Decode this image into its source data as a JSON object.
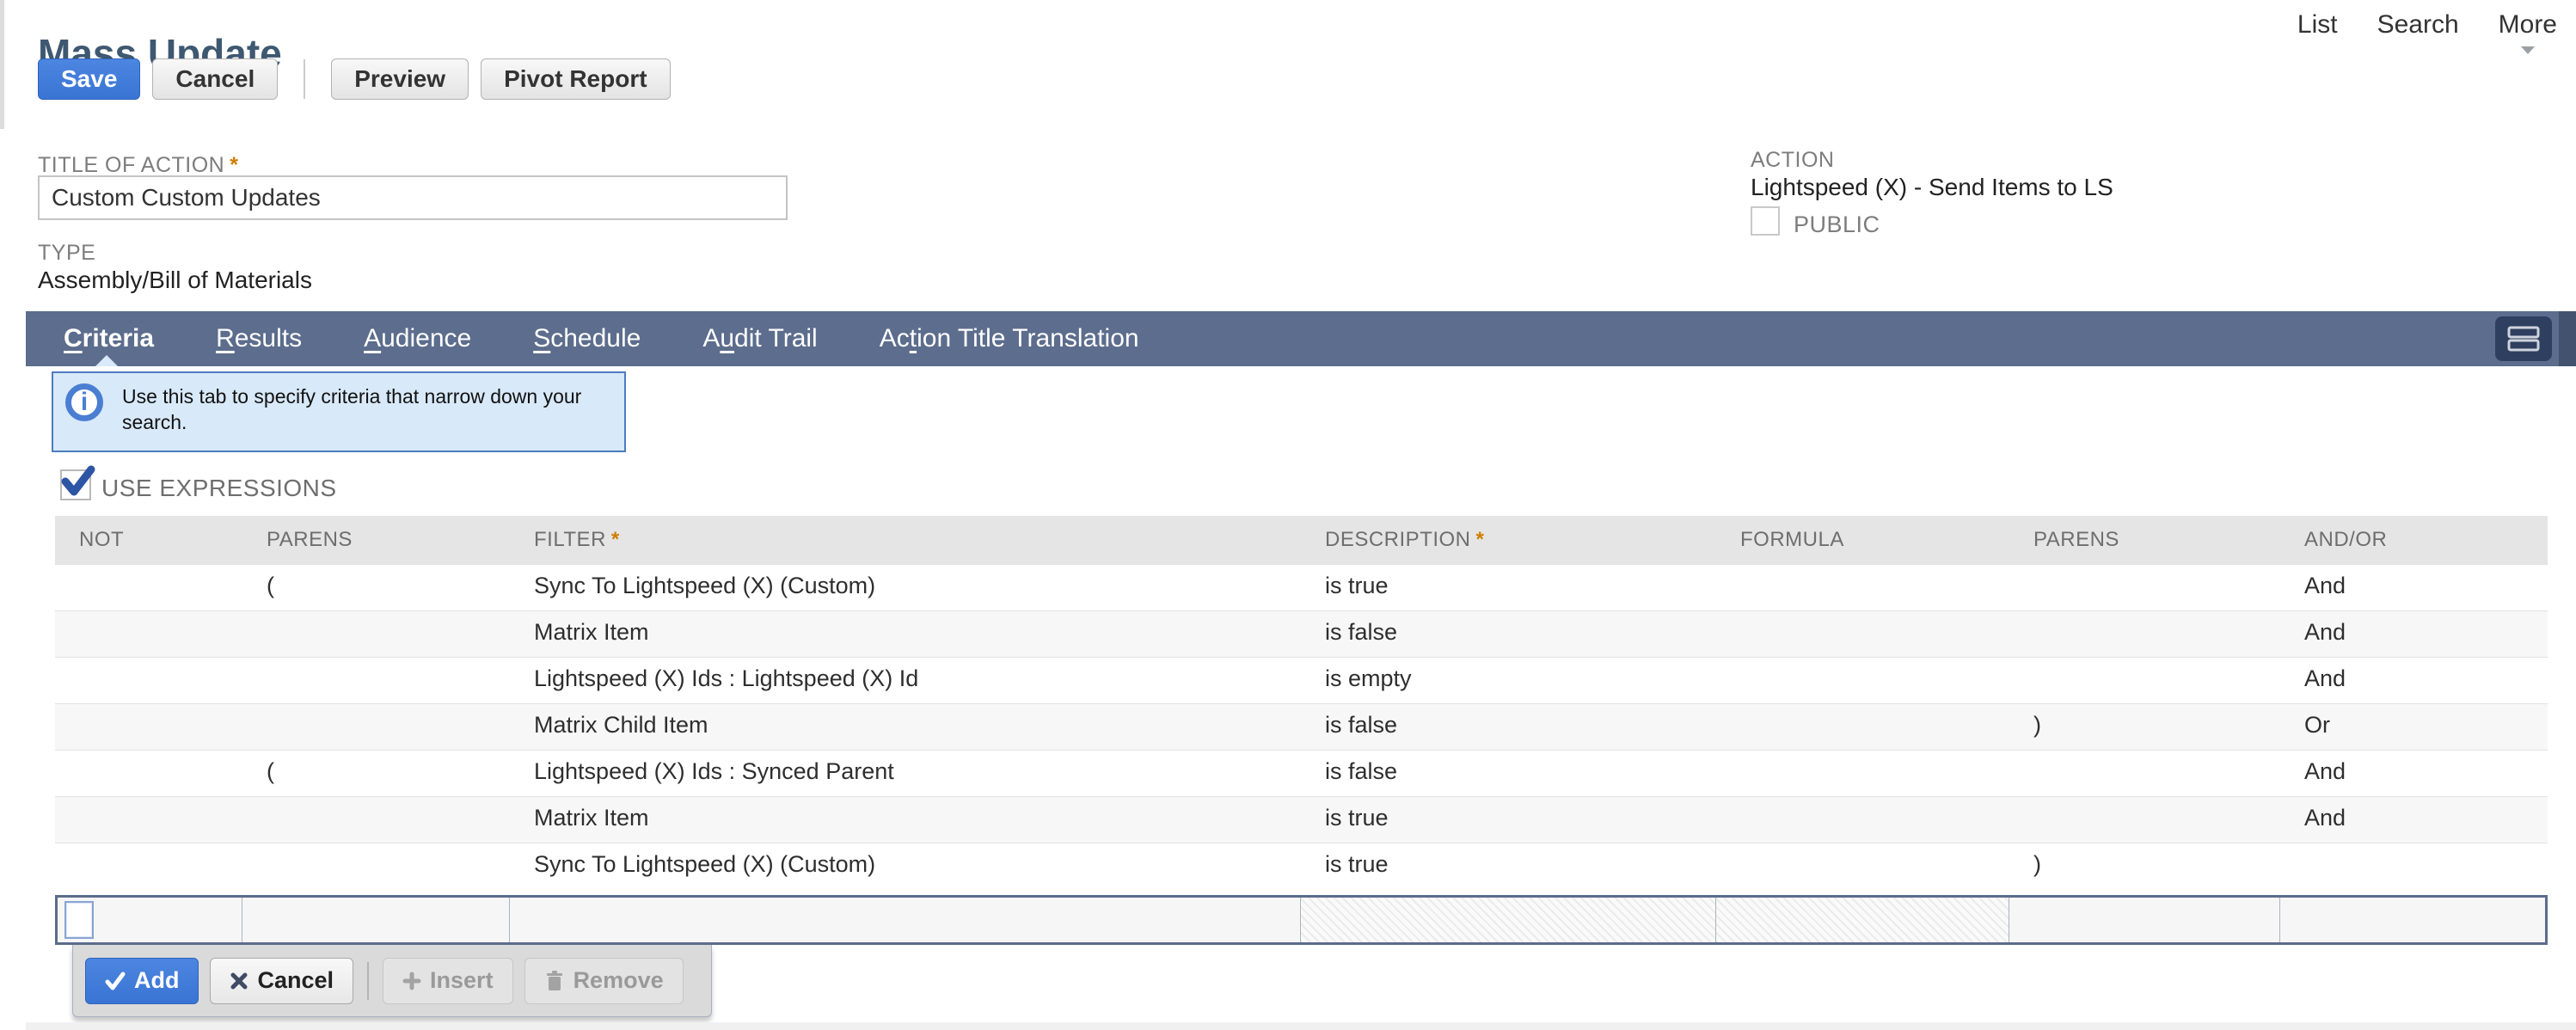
{
  "page": {
    "title": "Mass Update"
  },
  "required_marker": "*",
  "top_nav": {
    "links": [
      "List",
      "Search",
      "More"
    ]
  },
  "toolbar": {
    "save": "Save",
    "cancel": "Cancel",
    "preview": "Preview",
    "pivot_report": "Pivot Report"
  },
  "fields": {
    "title_of_action": {
      "label": "TITLE OF ACTION",
      "value": "Custom Custom Updates",
      "required": true
    },
    "type": {
      "label": "TYPE",
      "value": "Assembly/Bill of Materials"
    },
    "action": {
      "label": "ACTION",
      "value": "Lightspeed (X) - Send Items to LS"
    },
    "public": {
      "label": "PUBLIC",
      "checked": false
    }
  },
  "tabs": [
    {
      "label": "Criteria",
      "accesskey_index": 0,
      "active": true
    },
    {
      "label": "Results",
      "accesskey_index": 0,
      "active": false
    },
    {
      "label": "Audience",
      "accesskey_index": 0,
      "active": false
    },
    {
      "label": "Schedule",
      "accesskey_index": 0,
      "active": false
    },
    {
      "label": "Audit Trail",
      "accesskey_index": 1,
      "active": false
    },
    {
      "label": "Action Title Translation",
      "accesskey_index": 2,
      "active": false
    }
  ],
  "info_banner": {
    "text": "Use this tab to specify criteria that narrow down your search."
  },
  "use_expressions": {
    "label": "USE EXPRESSIONS",
    "checked": true
  },
  "criteria_table": {
    "columns": [
      {
        "label": "NOT",
        "required": false
      },
      {
        "label": "PARENS",
        "required": false
      },
      {
        "label": "FILTER",
        "required": true
      },
      {
        "label": "DESCRIPTION",
        "required": true
      },
      {
        "label": "FORMULA",
        "required": false
      },
      {
        "label": "PARENS",
        "required": false
      },
      {
        "label": "AND/OR",
        "required": false
      }
    ],
    "rows": [
      {
        "not": "",
        "parens": "(",
        "filter": "Sync To Lightspeed (X) (Custom)",
        "description": "is true",
        "formula": "",
        "parens2": "",
        "andor": "And"
      },
      {
        "not": "",
        "parens": "",
        "filter": "Matrix Item",
        "description": "is false",
        "formula": "",
        "parens2": "",
        "andor": "And"
      },
      {
        "not": "",
        "parens": "",
        "filter": "Lightspeed (X) Ids : Lightspeed (X) Id",
        "description": "is empty",
        "formula": "",
        "parens2": "",
        "andor": "And"
      },
      {
        "not": "",
        "parens": "",
        "filter": "Matrix Child Item",
        "description": "is false",
        "formula": "",
        "parens2": ")",
        "andor": "Or"
      },
      {
        "not": "",
        "parens": "(",
        "filter": "Lightspeed (X) Ids : Synced Parent",
        "description": "is false",
        "formula": "",
        "parens2": "",
        "andor": "And"
      },
      {
        "not": "",
        "parens": "",
        "filter": "Matrix Item",
        "description": "is true",
        "formula": "",
        "parens2": "",
        "andor": "And"
      },
      {
        "not": "",
        "parens": "",
        "filter": "Sync To Lightspeed (X) (Custom)",
        "description": "is true",
        "formula": "",
        "parens2": ")",
        "andor": ""
      }
    ]
  },
  "editor_buttons": {
    "add": "Add",
    "cancel": "Cancel",
    "insert": "Insert",
    "remove": "Remove"
  },
  "colors": {
    "accent_blue": "#3b77d7",
    "tab_bar": "#5c6d8d",
    "info_bg": "#d8e9f9",
    "info_border": "#4d7bbf",
    "required_orange": "#cf7e00",
    "title_text": "#3e5871"
  }
}
